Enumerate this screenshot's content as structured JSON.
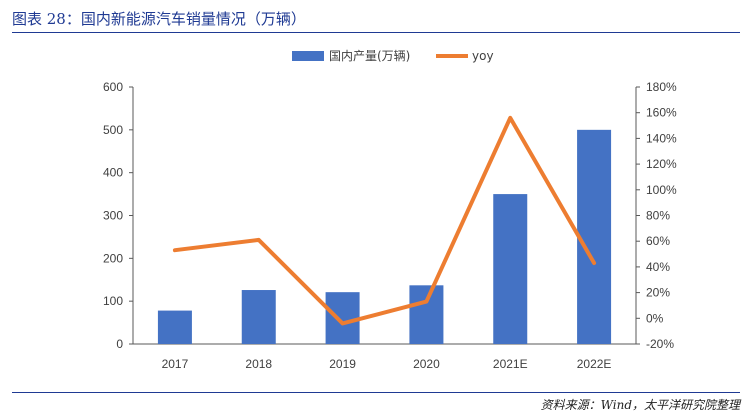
{
  "caption": "图表 28：国内新能源汽车销量情况（万辆）",
  "source": "资料来源：Wind，太平洋研究院整理",
  "colors": {
    "bar": "#4472C4",
    "line": "#ED7D31",
    "caption": "#1f3a93"
  },
  "chart_data": {
    "type": "bar",
    "categories": [
      "2017",
      "2018",
      "2019",
      "2020",
      "2021E",
      "2022E"
    ],
    "series": [
      {
        "name": "国内产量(万辆)",
        "type": "bar",
        "axis": "left",
        "values": [
          78,
          126,
          121,
          137,
          350,
          500
        ]
      },
      {
        "name": "yoy",
        "type": "line",
        "axis": "right",
        "values": [
          53,
          61,
          -4,
          13,
          156,
          43
        ]
      }
    ],
    "y_left": {
      "min": 0,
      "max": 600,
      "ticks": [
        "0",
        "100",
        "200",
        "300",
        "400",
        "500",
        "600"
      ]
    },
    "y_right": {
      "min": -20,
      "max": 180,
      "ticks": [
        "-20%",
        "0%",
        "20%",
        "40%",
        "60%",
        "80%",
        "100%",
        "120%",
        "140%",
        "160%",
        "180%"
      ]
    },
    "legend_position": "top",
    "grid": false
  }
}
